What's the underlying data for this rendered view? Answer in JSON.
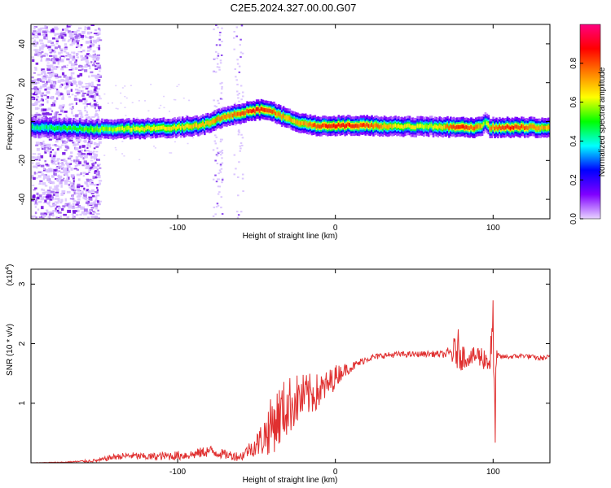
{
  "figure_title": "C2E5.2024.327.00.00.G07",
  "chart_data": [
    {
      "type": "heatmap",
      "xlabel": "Height of straight line (km)",
      "ylabel": "Frequency (Hz)",
      "xlim": [
        -193,
        136
      ],
      "ylim": [
        -50,
        50
      ],
      "xticks": [
        -100,
        0,
        100
      ],
      "yticks": [
        -40,
        -20,
        0,
        20,
        40
      ],
      "colorbar": {
        "label": "Normalized spectral amplitude",
        "range": [
          0,
          1
        ],
        "ticks": [
          "0.0",
          "0.2",
          "0.4",
          "0.6",
          "0.8"
        ],
        "colors": [
          "#e8d4ff",
          "#8000ff",
          "#0000ff",
          "#00ffff",
          "#00ff00",
          "#ffff00",
          "#ff8000",
          "#ff0000",
          "#ff0080"
        ]
      },
      "ridge": {
        "description_points_x": [
          -193,
          -150,
          -120,
          -100,
          -85,
          -75,
          -62,
          -50,
          -42,
          -35,
          -25,
          -15,
          0,
          20,
          40,
          60,
          80,
          92,
          95,
          98,
          110,
          136
        ],
        "frequency_y": [
          -3,
          -4,
          -3.5,
          -3,
          -2,
          1,
          4,
          6,
          6,
          3,
          0,
          -2,
          -2,
          -2,
          -2.5,
          -2.5,
          -3,
          -3,
          0,
          -3,
          -3,
          -3
        ],
        "strength": [
          0.5,
          0.65,
          0.75,
          0.75,
          0.8,
          0.85,
          0.9,
          1.0,
          0.95,
          0.85,
          0.8,
          0.9,
          1.0,
          0.95,
          0.75,
          0.7,
          1.0,
          0.85,
          0.6,
          0.85,
          1.0,
          0.8
        ]
      }
    },
    {
      "type": "line",
      "xlabel": "Height of straight line (km)",
      "ylabel": "SNR (10 * v/v)",
      "y_multiplier_label": "(x10",
      "y_multiplier_exp": "4",
      "xlim": [
        -193,
        136
      ],
      "ylim": [
        0,
        3.25
      ],
      "xticks": [
        -100,
        0,
        100
      ],
      "yticks": [
        1,
        2,
        3
      ],
      "color": "#e03030",
      "series": [
        {
          "x": [
            -193,
            -170,
            -150,
            -140,
            -130,
            -120,
            -100,
            -90,
            -80,
            -70,
            -60,
            -55,
            -50,
            -45,
            -40,
            -35,
            -30,
            -25,
            -20,
            -15,
            -10,
            -5,
            0,
            5,
            10,
            20,
            30,
            40,
            50,
            60,
            70,
            75,
            78,
            80,
            85,
            90,
            95,
            98,
            100,
            101,
            102,
            105,
            110,
            120,
            130,
            136
          ],
          "y": [
            0.0,
            0.01,
            0.04,
            0.1,
            0.12,
            0.1,
            0.12,
            0.14,
            0.2,
            0.14,
            0.1,
            0.22,
            0.3,
            0.45,
            0.65,
            0.8,
            0.95,
            1.05,
            1.1,
            1.15,
            1.2,
            1.3,
            1.45,
            1.55,
            1.6,
            1.75,
            1.8,
            1.82,
            1.82,
            1.83,
            1.82,
            1.85,
            1.9,
            1.8,
            1.75,
            1.8,
            1.75,
            1.7,
            2.3,
            0.5,
            1.75,
            1.78,
            1.78,
            1.8,
            1.75,
            1.78
          ],
          "noise_envelope": [
            0.0,
            0.01,
            0.03,
            0.05,
            0.06,
            0.06,
            0.08,
            0.08,
            0.1,
            0.08,
            0.08,
            0.12,
            0.2,
            0.35,
            0.5,
            0.55,
            0.5,
            0.45,
            0.4,
            0.35,
            0.3,
            0.25,
            0.2,
            0.12,
            0.08,
            0.06,
            0.05,
            0.05,
            0.05,
            0.05,
            0.06,
            0.25,
            0.35,
            0.25,
            0.12,
            0.2,
            0.2,
            0.25,
            0.5,
            0.9,
            0.15,
            0.04,
            0.04,
            0.04,
            0.04,
            0.04
          ]
        }
      ]
    }
  ]
}
